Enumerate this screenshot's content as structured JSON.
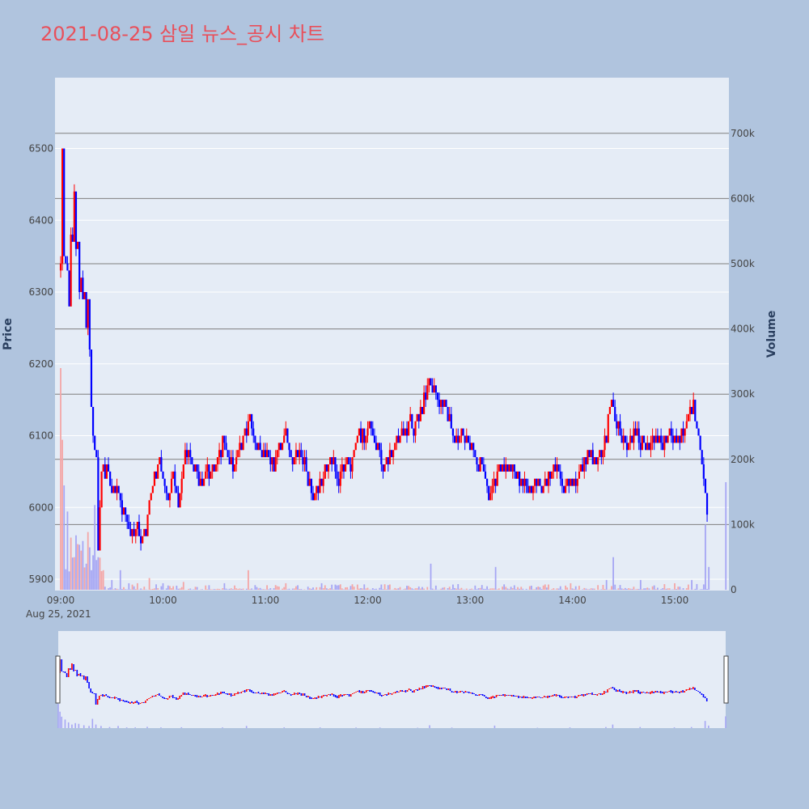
{
  "title": "2021-08-25 삼일 뉴스_공시 차트",
  "colors": {
    "page_background": "#b0c4de",
    "plot_background": "#e5ecf6",
    "title": "#e8505b",
    "up": "#ff0000",
    "down": "#0000ff",
    "volume_up": "#f4a6a6",
    "volume_down": "#a6a6f4",
    "grid": "#ffffff",
    "volume_grid": "#7f7f7f"
  },
  "chart_data": {
    "type": "candlestick",
    "title": "2021-08-25 삼일 뉴스_공시 차트",
    "ylabel": "Price",
    "y2label": "Volume",
    "date_label": "Aug 25, 2021",
    "x_ticks": [
      "09:00",
      "10:00",
      "11:00",
      "12:00",
      "13:00",
      "14:00",
      "15:00"
    ],
    "y_ticks": [
      5900,
      6000,
      6100,
      6200,
      6300,
      6400,
      6500
    ],
    "y2_ticks": [
      "0",
      "100k",
      "200k",
      "300k",
      "400k",
      "500k",
      "600k",
      "700k"
    ],
    "y2_tick_values": [
      0,
      100000,
      200000,
      300000,
      400000,
      500000,
      600000,
      700000
    ],
    "x_range": [
      "09:00",
      "15:30"
    ],
    "ylim": [
      5885,
      6580
    ],
    "y2lim": [
      0,
      780000
    ],
    "price_path": [
      [
        "09:00",
        6330
      ],
      [
        "09:01",
        6500
      ],
      [
        "09:02",
        6330
      ],
      [
        "09:04",
        6360
      ],
      [
        "09:05",
        6300
      ],
      [
        "09:06",
        6390
      ],
      [
        "09:07",
        6350
      ],
      [
        "09:08",
        6420
      ],
      [
        "09:09",
        6360
      ],
      [
        "09:10",
        6380
      ],
      [
        "09:11",
        6310
      ],
      [
        "09:12",
        6340
      ],
      [
        "09:13",
        6300
      ],
      [
        "09:14",
        6310
      ],
      [
        "09:15",
        6260
      ],
      [
        "09:16",
        6280
      ],
      [
        "09:17",
        6230
      ],
      [
        "09:18",
        6160
      ],
      [
        "09:19",
        6090
      ],
      [
        "09:20",
        6080
      ],
      [
        "09:21",
        6050
      ],
      [
        "09:22",
        5950
      ],
      [
        "09:23",
        6020
      ],
      [
        "09:25",
        6040
      ],
      [
        "09:27",
        6060
      ],
      [
        "09:30",
        6020
      ],
      [
        "09:33",
        6030
      ],
      [
        "09:36",
        6000
      ],
      [
        "09:40",
        5980
      ],
      [
        "09:44",
        5970
      ],
      [
        "09:48",
        5960
      ],
      [
        "09:50",
        5970
      ],
      [
        "09:52",
        6010
      ],
      [
        "09:55",
        6040
      ],
      [
        "09:58",
        6060
      ],
      [
        "10:00",
        6040
      ],
      [
        "10:03",
        6020
      ],
      [
        "10:06",
        6040
      ],
      [
        "10:09",
        6010
      ],
      [
        "10:12",
        6060
      ],
      [
        "10:14",
        6080
      ],
      [
        "10:16",
        6070
      ],
      [
        "10:19",
        6050
      ],
      [
        "10:22",
        6030
      ],
      [
        "10:25",
        6040
      ],
      [
        "10:28",
        6040
      ],
      [
        "10:31",
        6060
      ],
      [
        "10:34",
        6080
      ],
      [
        "10:36",
        6100
      ],
      [
        "10:38",
        6080
      ],
      [
        "10:41",
        6060
      ],
      [
        "10:44",
        6070
      ],
      [
        "10:46",
        6090
      ],
      [
        "10:48",
        6110
      ],
      [
        "10:50",
        6130
      ],
      [
        "10:52",
        6120
      ],
      [
        "10:55",
        6090
      ],
      [
        "10:58",
        6070
      ],
      [
        "11:00",
        6070
      ],
      [
        "11:02",
        6080
      ],
      [
        "11:05",
        6060
      ],
      [
        "11:07",
        6070
      ],
      [
        "11:10",
        6090
      ],
      [
        "11:12",
        6100
      ],
      [
        "11:15",
        6080
      ],
      [
        "11:17",
        6070
      ],
      [
        "11:20",
        6080
      ],
      [
        "11:23",
        6060
      ],
      [
        "11:25",
        6040
      ],
      [
        "11:27",
        6020
      ],
      [
        "11:30",
        6020
      ],
      [
        "11:33",
        6040
      ],
      [
        "11:36",
        6060
      ],
      [
        "11:39",
        6060
      ],
      [
        "11:42",
        6040
      ],
      [
        "11:45",
        6060
      ],
      [
        "11:48",
        6060
      ],
      [
        "11:51",
        6070
      ],
      [
        "11:54",
        6090
      ],
      [
        "11:56",
        6100
      ],
      [
        "12:00",
        6100
      ],
      [
        "12:03",
        6110
      ],
      [
        "12:06",
        6080
      ],
      [
        "12:09",
        6060
      ],
      [
        "12:12",
        6070
      ],
      [
        "12:15",
        6080
      ],
      [
        "12:18",
        6090
      ],
      [
        "12:21",
        6110
      ],
      [
        "12:24",
        6120
      ],
      [
        "12:27",
        6110
      ],
      [
        "12:30",
        6130
      ],
      [
        "12:33",
        6150
      ],
      [
        "12:36",
        6170
      ],
      [
        "12:37",
        6180
      ],
      [
        "12:40",
        6160
      ],
      [
        "12:43",
        6140
      ],
      [
        "12:46",
        6140
      ],
      [
        "12:48",
        6120
      ],
      [
        "12:50",
        6100
      ],
      [
        "12:52",
        6090
      ],
      [
        "12:55",
        6100
      ],
      [
        "12:58",
        6090
      ],
      [
        "13:00",
        6090
      ],
      [
        "13:03",
        6070
      ],
      [
        "13:06",
        6070
      ],
      [
        "13:08",
        6050
      ],
      [
        "13:10",
        6020
      ],
      [
        "13:12",
        6020
      ],
      [
        "13:15",
        6040
      ],
      [
        "13:18",
        6060
      ],
      [
        "13:21",
        6050
      ],
      [
        "13:24",
        6060
      ],
      [
        "13:27",
        6040
      ],
      [
        "13:30",
        6040
      ],
      [
        "13:33",
        6040
      ],
      [
        "13:36",
        6020
      ],
      [
        "13:39",
        6030
      ],
      [
        "13:42",
        6030
      ],
      [
        "13:45",
        6040
      ],
      [
        "13:48",
        6050
      ],
      [
        "13:51",
        6060
      ],
      [
        "13:54",
        6040
      ],
      [
        "13:57",
        6030
      ],
      [
        "14:00",
        6030
      ],
      [
        "14:03",
        6050
      ],
      [
        "14:06",
        6060
      ],
      [
        "14:09",
        6080
      ],
      [
        "14:12",
        6060
      ],
      [
        "14:15",
        6070
      ],
      [
        "14:18",
        6080
      ],
      [
        "14:20",
        6110
      ],
      [
        "14:22",
        6140
      ],
      [
        "14:23",
        6150
      ],
      [
        "14:25",
        6120
      ],
      [
        "14:28",
        6100
      ],
      [
        "14:31",
        6090
      ],
      [
        "14:34",
        6100
      ],
      [
        "14:37",
        6110
      ],
      [
        "14:40",
        6090
      ],
      [
        "14:43",
        6090
      ],
      [
        "14:46",
        6090
      ],
      [
        "14:49",
        6100
      ],
      [
        "14:52",
        6090
      ],
      [
        "14:55",
        6100
      ],
      [
        "14:58",
        6100
      ],
      [
        "15:00",
        6090
      ],
      [
        "15:03",
        6100
      ],
      [
        "15:06",
        6110
      ],
      [
        "15:09",
        6140
      ],
      [
        "15:11",
        6150
      ],
      [
        "15:13",
        6110
      ],
      [
        "15:15",
        6080
      ],
      [
        "15:17",
        6050
      ],
      [
        "15:18",
        6020
      ],
      [
        "15:19",
        5990
      ],
      [
        "15:20",
        6000
      ]
    ],
    "volume_peaks": [
      [
        "09:00",
        340000
      ],
      [
        "09:01",
        230000
      ],
      [
        "09:02",
        160000
      ],
      [
        "09:04",
        120000
      ],
      [
        "09:06",
        80000
      ],
      [
        "09:08",
        50000
      ],
      [
        "09:10",
        70000
      ],
      [
        "09:12",
        60000
      ],
      [
        "09:15",
        40000
      ],
      [
        "09:18",
        30000
      ],
      [
        "09:20",
        130000
      ],
      [
        "09:22",
        50000
      ],
      [
        "09:25",
        30000
      ],
      [
        "09:30",
        15000
      ],
      [
        "09:35",
        30000
      ],
      [
        "09:40",
        10000
      ],
      [
        "09:45",
        10000
      ],
      [
        "09:52",
        18000
      ],
      [
        "10:00",
        10000
      ],
      [
        "10:12",
        12000
      ],
      [
        "10:36",
        10000
      ],
      [
        "10:50",
        30000
      ],
      [
        "11:12",
        10000
      ],
      [
        "11:33",
        10000
      ],
      [
        "11:54",
        8000
      ],
      [
        "12:08",
        8000
      ],
      [
        "12:30",
        5000
      ],
      [
        "12:37",
        40000
      ],
      [
        "12:50",
        8000
      ],
      [
        "13:15",
        35000
      ],
      [
        "13:40",
        5000
      ],
      [
        "13:59",
        10000
      ],
      [
        "14:20",
        15000
      ],
      [
        "14:24",
        50000
      ],
      [
        "14:40",
        15000
      ],
      [
        "15:00",
        10000
      ],
      [
        "15:10",
        15000
      ],
      [
        "15:18",
        100000
      ],
      [
        "15:20",
        35000
      ],
      [
        "15:30",
        165000
      ]
    ],
    "range_slider": true
  }
}
